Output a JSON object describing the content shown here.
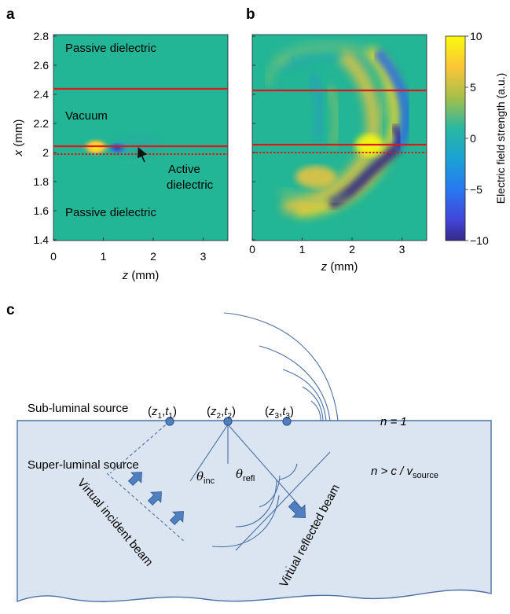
{
  "panel_a": {
    "letter": "a",
    "xlabel_var": "z",
    "xlabel_unit": " (mm)",
    "ylabel_var": "x",
    "ylabel_unit": " (mm)",
    "xticks": [
      "0",
      "1",
      "2",
      "3"
    ],
    "yticks": [
      "2.8",
      "2.6",
      "2.4",
      "2.2",
      "2",
      "1.8",
      "1.6",
      "1.4"
    ],
    "label_top": "Passive dielectric",
    "label_vacuum": "Vacuum",
    "label_bottom": "Passive dielectric",
    "label_active_1": "Active",
    "label_active_2": "dielectric"
  },
  "panel_b": {
    "letter": "b",
    "xlabel_var": "z",
    "xlabel_unit": " (mm)",
    "xticks": [
      "0",
      "1",
      "2",
      "3"
    ]
  },
  "colorbar": {
    "label": "Electric field strength (a.u.)",
    "ticks": [
      "10",
      "5",
      "0",
      "−5",
      "−10"
    ]
  },
  "panel_c": {
    "letter": "c",
    "sub_luminal": "Sub-luminal source",
    "super_luminal": "Super-luminal source",
    "n1": "n = 1",
    "n_cond_prefix": "n > c / v",
    "n_cond_sub": "source",
    "theta_inc_sub": "inc",
    "theta_refl_sub": "refl",
    "virtual_incident": "Virtual incident beam",
    "virtual_reflected": "Virtual reflected beam",
    "point_labels": [
      {
        "z": "z",
        "zi": "1",
        "t": "t",
        "ti": "1"
      },
      {
        "z": "z",
        "zi": "2",
        "t": "t",
        "ti": "2"
      },
      {
        "z": "z",
        "zi": "3",
        "t": "t",
        "ti": "3"
      }
    ]
  },
  "colors": {
    "background_field": "#22b596",
    "boundary_red": "#e0161b",
    "region_blue": "#dbe5f1",
    "edge_blue": "#4a6fa5",
    "arrow_blue": "#4f7fbf"
  }
}
